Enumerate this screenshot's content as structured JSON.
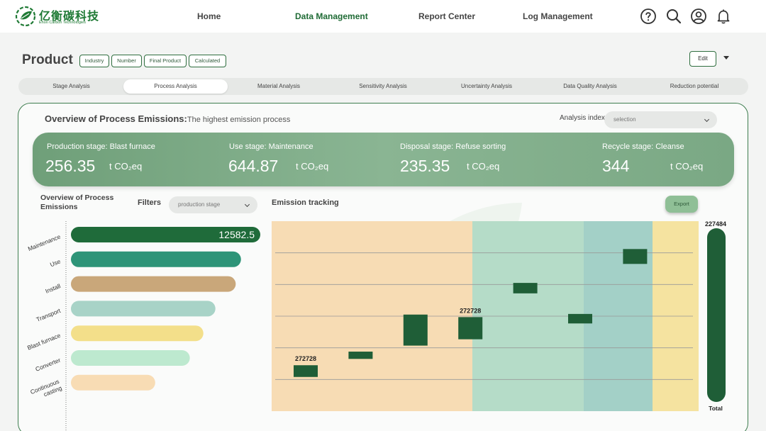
{
  "colors": {
    "brand": "#1f7a35",
    "dark_green": "#1f5e37",
    "banner": "#7aa884"
  },
  "nav": {
    "logo_title": "亿衡碳科技",
    "logo_subtitle": "Ehon Carbon Technologies",
    "items": [
      "Home",
      "Data Management",
      "Report Center",
      "Log Management"
    ],
    "active": "Data Management",
    "icons": [
      "help-icon",
      "search-icon",
      "user-icon",
      "bell-icon"
    ]
  },
  "header": {
    "title": "Product",
    "tags": [
      "Industry",
      "Number",
      "Final Product",
      "Calculated"
    ],
    "edit_label": "Edit"
  },
  "tabs": [
    "Stage Analysis",
    "Process Analysis",
    "Material Analysis",
    "Sensitivity Analysis",
    "Uncertainty Analysis",
    "Data Quality Analysis",
    "Reduction potential"
  ],
  "active_tab": "Process Analysis",
  "overview": {
    "title": "Overview of Process Emissions:",
    "subtitle": "The highest emission process",
    "analysis_index_label": "Analysis index",
    "analysis_index_placeholder": "selection"
  },
  "stages": [
    {
      "label": "Production stage: Blast furnace",
      "value": "256.35",
      "unit": "t CO₂eq"
    },
    {
      "label": "Use stage: Maintenance",
      "value": "644.87",
      "unit": "t CO₂eq"
    },
    {
      "label": "Disposal stage: Refuse sorting",
      "value": "235.35",
      "unit": "t CO₂eq"
    },
    {
      "label": "Recycle stage: Cleanse",
      "value": "344",
      "unit": "t CO₂eq"
    }
  ],
  "left_panel": {
    "title": "Overview of Process Emissions",
    "filters_label": "Filters",
    "filter_value": "production stage"
  },
  "emission_tracking": {
    "title": "Emission tracking",
    "export_label": "Export",
    "total_label": "Total"
  },
  "chart_data": [
    {
      "type": "bar",
      "orientation": "horizontal",
      "title": "Overview of Process Emissions",
      "categories": [
        "Maintenance",
        "Use",
        "Install",
        "Transport",
        "Blast furnace",
        "Converter",
        "Continuous casting"
      ],
      "values": [
        12582.5,
        11300,
        10950,
        9600,
        8800,
        7900,
        5600
      ],
      "value_labels": [
        "12582.5",
        "",
        "",
        "",
        "",
        "",
        ""
      ],
      "bar_colors": [
        "#1f6b3a",
        "#2e9478",
        "#c9a77a",
        "#a8d3c7",
        "#f3df8a",
        "#bde9cf",
        "#f8dcb4"
      ],
      "xlim": [
        0,
        12582.5
      ]
    },
    {
      "type": "waterfall",
      "title": "Emission tracking",
      "ylim": [
        0,
        6
      ],
      "gridlines": [
        1,
        2,
        3,
        4,
        5
      ],
      "background_bands": [
        "#f7dcb4",
        "#b5dcc8",
        "#a3d0c7",
        "#f5e3a0"
      ],
      "bars": [
        {
          "low": 1.08,
          "high": 1.45,
          "label": "272728"
        },
        {
          "low": 1.65,
          "high": 1.88,
          "label": ""
        },
        {
          "low": 2.07,
          "high": 3.05,
          "label": ""
        },
        {
          "low": 2.27,
          "high": 2.97,
          "label": "272728"
        },
        {
          "low": 3.72,
          "high": 4.05,
          "label": ""
        },
        {
          "low": 2.77,
          "high": 3.07,
          "label": ""
        },
        {
          "low": 4.65,
          "high": 5.12,
          "label": ""
        }
      ],
      "total": {
        "label": "Total",
        "value": "227484",
        "value_fraction": 1.0
      }
    }
  ]
}
